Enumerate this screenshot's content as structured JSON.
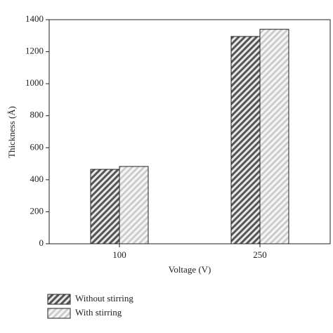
{
  "chart_data": {
    "type": "bar",
    "x_label": "Voltage (V)",
    "y_label": "Thickness (Å)",
    "categories": [
      "100",
      "250"
    ],
    "series": [
      {
        "name": "Without stirring",
        "color": "#555555",
        "values": [
          465,
          1295
        ]
      },
      {
        "name": "With stirring",
        "color": "#c8c8c8",
        "values": [
          483,
          1340
        ]
      }
    ],
    "ylim": [
      0,
      1400
    ],
    "yticks": [
      0,
      200,
      400,
      600,
      800,
      1000,
      1200,
      1400
    ],
    "grid": false
  }
}
